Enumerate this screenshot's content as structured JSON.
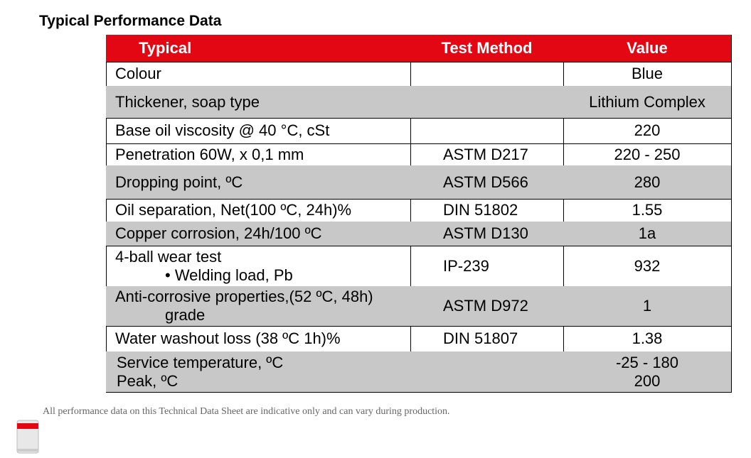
{
  "header": {
    "title": "Typical Performance Data"
  },
  "table": {
    "columns": [
      "Typical",
      "Test Method",
      "Value"
    ],
    "rows": [
      [
        [
          "Colour"
        ],
        null,
        [
          "Blue"
        ]
      ],
      [
        [
          "Thickener, soap type"
        ],
        null,
        [
          "Lithium Complex"
        ]
      ],
      [
        [
          "Base oil viscosity @ 40 °C, cSt"
        ],
        null,
        [
          "220"
        ]
      ],
      [
        [
          "Penetration 60W, x 0,1 mm"
        ],
        [
          "ASTM D217"
        ],
        [
          "220 - 250"
        ]
      ],
      [
        [
          "Dropping point, ºC"
        ],
        [
          "ASTM D566"
        ],
        [
          "280"
        ]
      ],
      [
        [
          "Oil separation, Net(100 ºC, 24h)%"
        ],
        [
          "DIN 51802"
        ],
        [
          "1.55"
        ]
      ],
      [
        [
          "Copper corrosion, 24h/100 ºC"
        ],
        [
          "ASTM D130"
        ],
        [
          "1a"
        ]
      ],
      [
        [
          "4-ball wear test",
          "• Welding load, Pb"
        ],
        [
          "IP-239"
        ],
        [
          "932"
        ]
      ],
      [
        [
          "Anti-corrosive properties,(52 ºC, 48h)",
          "grade"
        ],
        [
          "ASTM D972"
        ],
        [
          "1"
        ]
      ],
      [
        [
          "Water washout loss (38 ºC 1h)%"
        ],
        [
          "DIN 51807"
        ],
        [
          "1.38"
        ]
      ],
      [
        [
          "Service temperature, ºC",
          "Peak, ºC"
        ],
        null,
        [
          "-25 - 180",
          "200"
        ]
      ]
    ]
  },
  "footer": {
    "note": "All performance data on this Technical Data Sheet are indicative only and can vary during production."
  }
}
